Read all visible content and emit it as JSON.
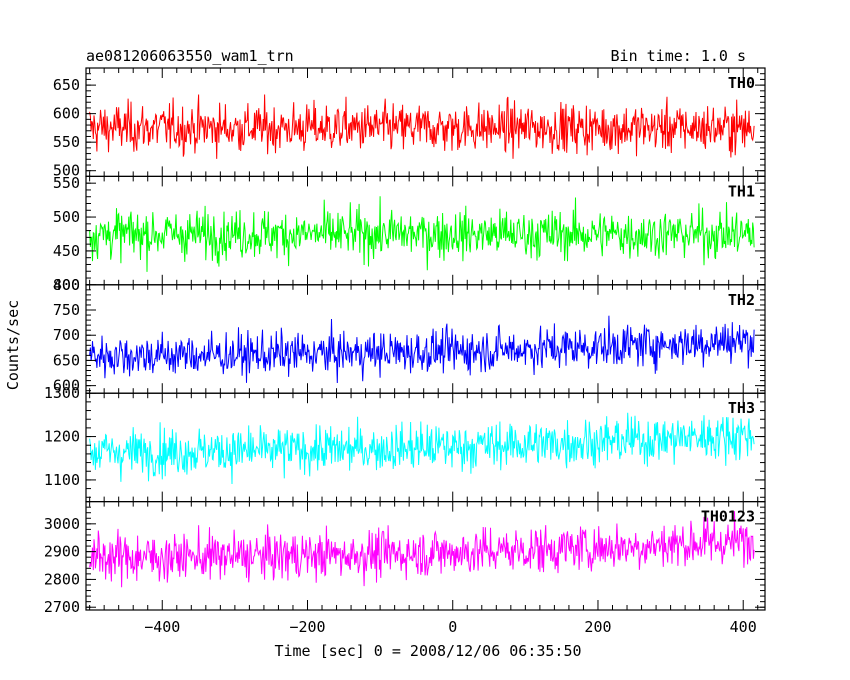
{
  "header": {
    "title": "ae081206063550_wam1_trn",
    "bin_time": "Bin time: 1.0 s"
  },
  "axes": {
    "xlabel": "Time [sec] 0 = 2008/12/06 06:35:50",
    "ylabel": "Counts/sec"
  },
  "colors": {
    "TH0": "#ff0000",
    "TH1": "#00ff00",
    "TH2": "#0000ff",
    "TH3": "#00ffff",
    "TH0123": "#ff00ff"
  },
  "chart_data": {
    "type": "line",
    "title": "ae081206063550_wam1_trn",
    "subtitle": "Bin time: 1.0 s",
    "xlabel": "Time [sec] 0 = 2008/12/06 06:35:50",
    "ylabel": "Counts/sec",
    "xlim": [
      -505,
      430
    ],
    "xticks": [
      -400,
      -200,
      0,
      200,
      400
    ],
    "x_start": -500,
    "x_end": 415,
    "x_step": 1,
    "grid": false,
    "panels": [
      {
        "name": "TH0",
        "ylim": [
          490,
          680
        ],
        "yticks": [
          500,
          550,
          600,
          650
        ],
        "mean": 575,
        "spread": 30,
        "trend": 0
      },
      {
        "name": "TH1",
        "ylim": [
          400,
          560
        ],
        "yticks": [
          400,
          450,
          500,
          550
        ],
        "mean": 475,
        "spread": 25,
        "trend": 0
      },
      {
        "name": "TH2",
        "ylim": [
          585,
          800
        ],
        "yticks": [
          600,
          650,
          700,
          750,
          800
        ],
        "mean": 660,
        "spread": 30,
        "trend": 30
      },
      {
        "name": "TH3",
        "ylim": [
          1050,
          1300
        ],
        "yticks": [
          1100,
          1200,
          1300
        ],
        "mean": 1165,
        "spread": 38,
        "trend": 40
      },
      {
        "name": "TH0123",
        "ylim": [
          2690,
          3080
        ],
        "yticks": [
          2700,
          2800,
          2900,
          3000
        ],
        "mean": 2880,
        "spread": 60,
        "trend": 60
      }
    ]
  }
}
